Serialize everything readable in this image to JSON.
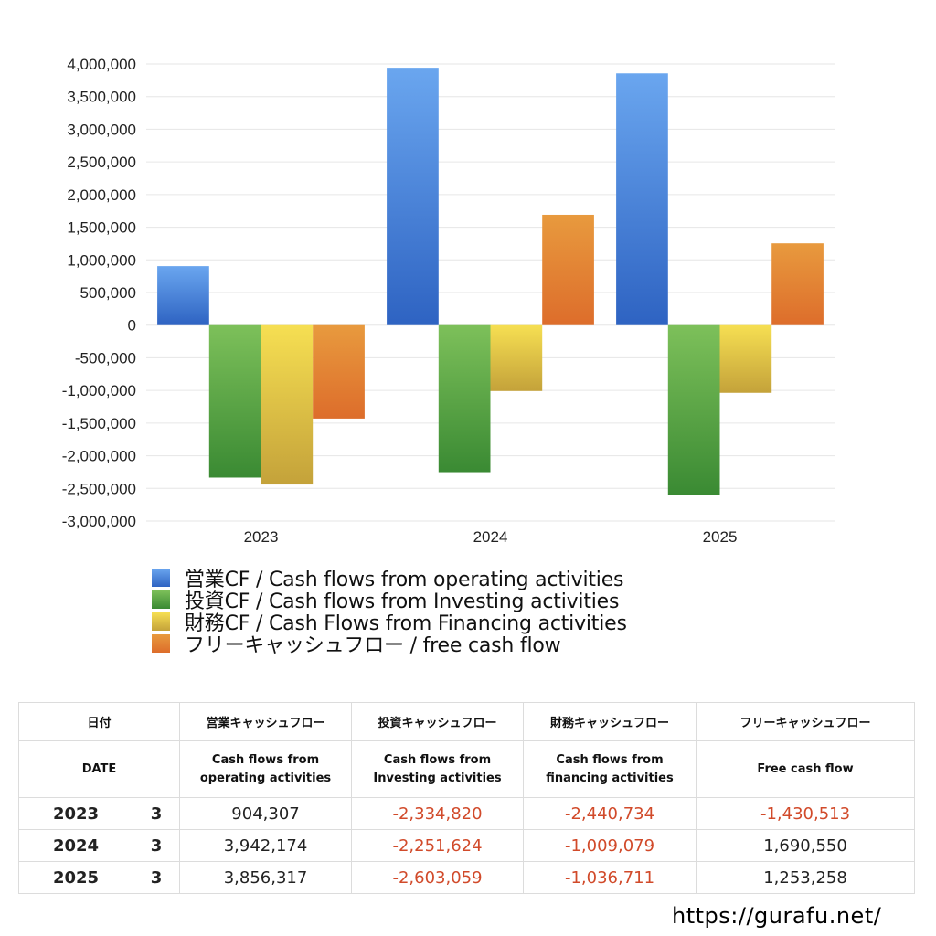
{
  "chart_data": {
    "type": "bar",
    "categories": [
      "2023",
      "2024",
      "2025"
    ],
    "series": [
      {
        "name": "営業CF / Cash flows from operating activities",
        "values": [
          904307,
          3942174,
          3856317
        ],
        "colors": [
          "#6aa6ef",
          "#2e63c2"
        ]
      },
      {
        "name": "投資CF / Cash flows from Investing activities",
        "values": [
          -2334820,
          -2251624,
          -2603059
        ],
        "colors": [
          "#7dc05a",
          "#3a8a33"
        ]
      },
      {
        "name": "財務CF / Cash Flows from Financing activities",
        "values": [
          -2440734,
          -1009079,
          -1036711
        ],
        "colors": [
          "#f6df52",
          "#c4a23a"
        ]
      },
      {
        "name": "フリーキャッシュフロー / free cash flow",
        "values": [
          -1430513,
          1690550,
          1253258
        ],
        "colors": [
          "#e89a3e",
          "#dd6d2b"
        ]
      }
    ],
    "ylim": [
      -3000000,
      4000000
    ],
    "yticks": [
      "4,000,000",
      "3,500,000",
      "3,000,000",
      "2,500,000",
      "2,000,000",
      "1,500,000",
      "1,000,000",
      "500,000",
      "0",
      "-500,000",
      "-1,000,000",
      "-1,500,000",
      "-2,000,000",
      "-2,500,000",
      "-3,000,000"
    ],
    "grid": true,
    "legend_position": "bottom"
  },
  "table": {
    "header_ja": [
      "日付",
      "営業キャッシュフロー",
      "投資キャッシュフロー",
      "財務キャッシュフロー",
      "フリーキャッシュフロー"
    ],
    "header_en": {
      "date": "DATE",
      "operating": [
        "Cash flows from",
        "operating activities"
      ],
      "investing": [
        "Cash flows from",
        "Investing activities"
      ],
      "financing": [
        "Cash flows from",
        "financing activities"
      ],
      "free": "Free cash flow"
    },
    "rows": [
      {
        "year": "2023",
        "month": "3",
        "operating": "904,307",
        "investing": "-2,334,820",
        "financing": "-2,440,734",
        "free": "-1,430,513"
      },
      {
        "year": "2024",
        "month": "3",
        "operating": "3,942,174",
        "investing": "-2,251,624",
        "financing": "-1,009,079",
        "free": "1,690,550"
      },
      {
        "year": "2025",
        "month": "3",
        "operating": "3,856,317",
        "investing": "-2,603,059",
        "financing": "-1,036,711",
        "free": "1,253,258"
      }
    ],
    "negative_color": "#d14a2a"
  },
  "footer": {
    "url": "https://gurafu.net/"
  }
}
